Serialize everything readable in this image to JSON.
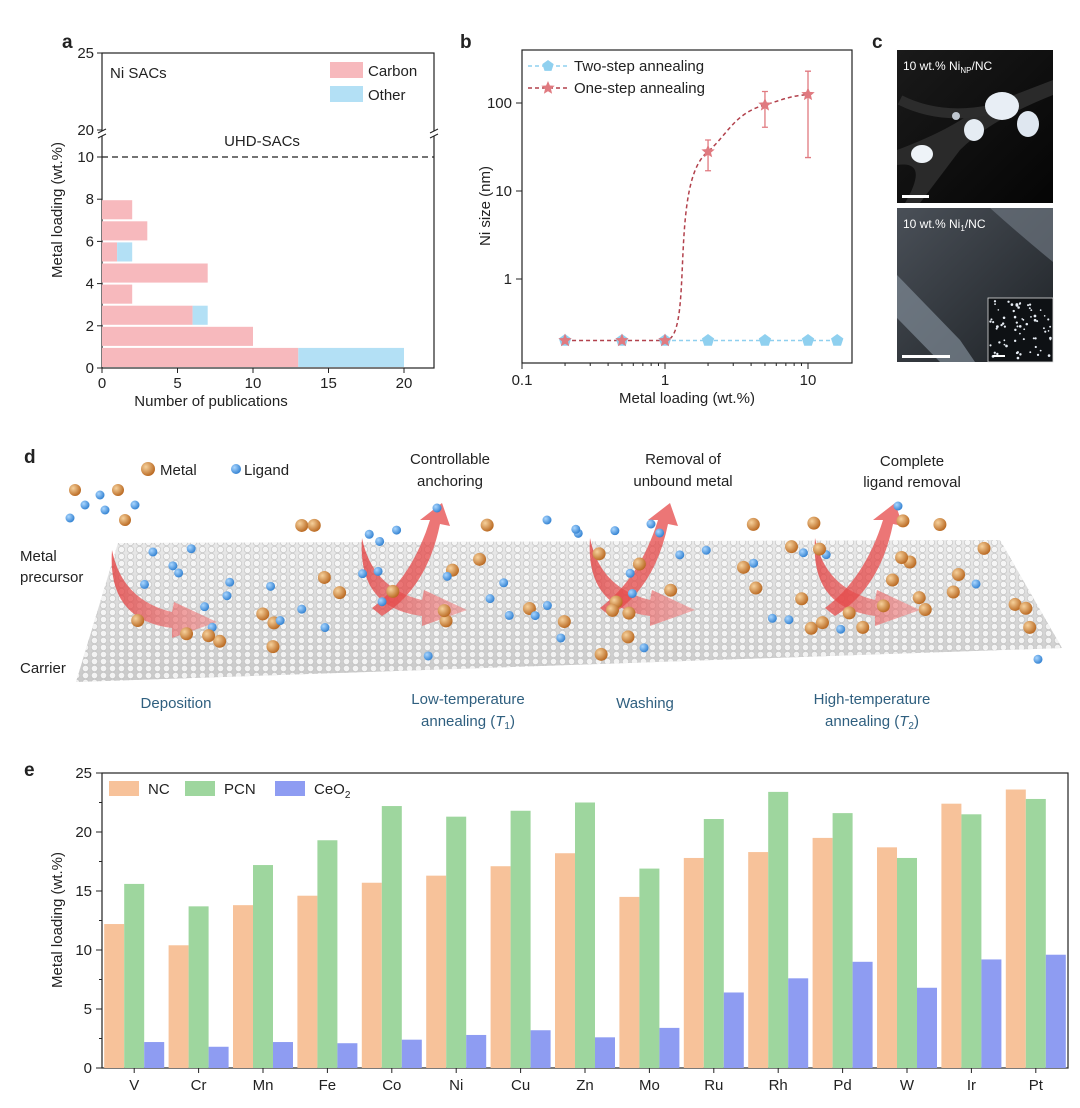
{
  "panel_labels": {
    "a": "a",
    "b": "b",
    "c": "c",
    "d": "d",
    "e": "e"
  },
  "chart_data": [
    {
      "id": "a",
      "type": "bar",
      "orientation": "horizontal",
      "stacked": true,
      "annotation": "Ni SACs",
      "threshold_label": "UHD-SACs",
      "threshold_value": 10,
      "xlabel": "Number of publications",
      "ylabel": "Metal loading (wt.%)",
      "xlim": [
        0,
        22
      ],
      "ylim": [
        0,
        25
      ],
      "y_break": [
        10.5,
        20
      ],
      "xticks": [
        0,
        5,
        10,
        15,
        20
      ],
      "yticks": [
        0,
        2,
        4,
        6,
        8,
        10,
        20,
        25
      ],
      "legend_position": "top-right",
      "bins": [
        [
          0,
          1
        ],
        [
          1,
          2
        ],
        [
          2,
          3
        ],
        [
          3,
          4
        ],
        [
          4,
          5
        ],
        [
          5,
          6
        ],
        [
          6,
          7
        ],
        [
          7,
          8
        ]
      ],
      "series": [
        {
          "name": "Carbon",
          "color": "#f7b9bd",
          "values": [
            13,
            10,
            6,
            2,
            7,
            1,
            3,
            2
          ]
        },
        {
          "name": "Other",
          "color": "#b3e0f5",
          "values": [
            7,
            0,
            1,
            0,
            0,
            1,
            0,
            0
          ]
        }
      ]
    },
    {
      "id": "b",
      "type": "line",
      "xscale": "log",
      "yscale": "log",
      "xlabel": "Metal loading (wt.%)",
      "ylabel": "Ni size (nm)",
      "xlim": [
        0.1,
        18
      ],
      "ylim": [
        0.15,
        350
      ],
      "xticks": [
        "0.1",
        "1",
        "10"
      ],
      "yticks": [
        "1",
        "10",
        "100"
      ],
      "legend_position": "top-left",
      "series": [
        {
          "name": "Two-step annealing",
          "color": "#8fd0ef",
          "marker": "pentagon",
          "x": [
            0.2,
            0.5,
            1,
            2,
            5,
            10,
            16
          ],
          "y": [
            0.2,
            0.2,
            0.2,
            0.2,
            0.2,
            0.2,
            0.2
          ]
        },
        {
          "name": "One-step annealing",
          "color": "#e07a80",
          "marker": "star",
          "x": [
            0.2,
            0.5,
            1,
            2,
            5,
            10
          ],
          "y": [
            0.2,
            0.2,
            0.2,
            28,
            95,
            125
          ],
          "err_low": [
            null,
            null,
            null,
            17,
            53,
            24
          ],
          "err_high": [
            null,
            null,
            null,
            38,
            135,
            230
          ]
        }
      ]
    },
    {
      "id": "e",
      "type": "bar",
      "ylabel": "Metal loading (wt.%)",
      "ylim": [
        0,
        25
      ],
      "yticks": [
        0,
        5,
        10,
        15,
        20,
        25
      ],
      "legend_position": "top-left",
      "categories": [
        "V",
        "Cr",
        "Mn",
        "Fe",
        "Co",
        "Ni",
        "Cu",
        "Zn",
        "Mo",
        "Ru",
        "Rh",
        "Pd",
        "W",
        "Ir",
        "Pt"
      ],
      "series": [
        {
          "name": "NC",
          "name_main": "NC",
          "name_sub": "",
          "color": "#f7c29a",
          "values": [
            12.2,
            10.4,
            13.8,
            14.6,
            15.7,
            16.3,
            17.1,
            18.2,
            14.5,
            17.8,
            18.3,
            19.5,
            18.7,
            22.4,
            23.6
          ]
        },
        {
          "name": "PCN",
          "name_main": "PCN",
          "name_sub": "",
          "color": "#9ed69e",
          "values": [
            15.6,
            13.7,
            17.2,
            19.3,
            22.2,
            21.3,
            21.8,
            22.5,
            16.9,
            21.1,
            23.4,
            21.6,
            17.8,
            21.5,
            22.8
          ]
        },
        {
          "name": "CeO2",
          "name_main": "CeO",
          "name_sub": "2",
          "color": "#8e9cf2",
          "values": [
            2.2,
            1.8,
            2.2,
            2.1,
            2.4,
            2.8,
            3.2,
            2.6,
            3.4,
            6.4,
            7.6,
            9.0,
            6.8,
            9.2,
            9.6
          ]
        }
      ]
    }
  ],
  "panel_c": {
    "top": {
      "prefix": "10 wt.% Ni",
      "sub": "NP",
      "suffix": "/NC"
    },
    "bottom": {
      "prefix": "10 wt.% Ni",
      "sub": "1",
      "suffix": "/NC"
    }
  },
  "panel_d": {
    "legend_metal": "Metal",
    "legend_ligand": "Ligand",
    "metal_color": "#d98a3a",
    "ligand_color": "#4a9be0",
    "left_labels": {
      "precursor_1": "Metal",
      "precursor_2": "precursor",
      "carrier": "Carrier"
    },
    "step_notes": [
      {
        "line1": "Controllable",
        "line2": "anchoring"
      },
      {
        "line1": "Removal of",
        "line2": "unbound metal"
      },
      {
        "line1": "Complete",
        "line2": "ligand removal"
      }
    ],
    "stages": {
      "deposition": "Deposition",
      "low_1": "Low-temperature",
      "low_2": "annealing (",
      "low_T": "T",
      "low_sub": "1",
      "low_close": ")",
      "washing": "Washing",
      "high_1": "High-temperature",
      "high_2": "annealing (",
      "high_T": "T",
      "high_sub": "2",
      "high_close": ")"
    }
  }
}
